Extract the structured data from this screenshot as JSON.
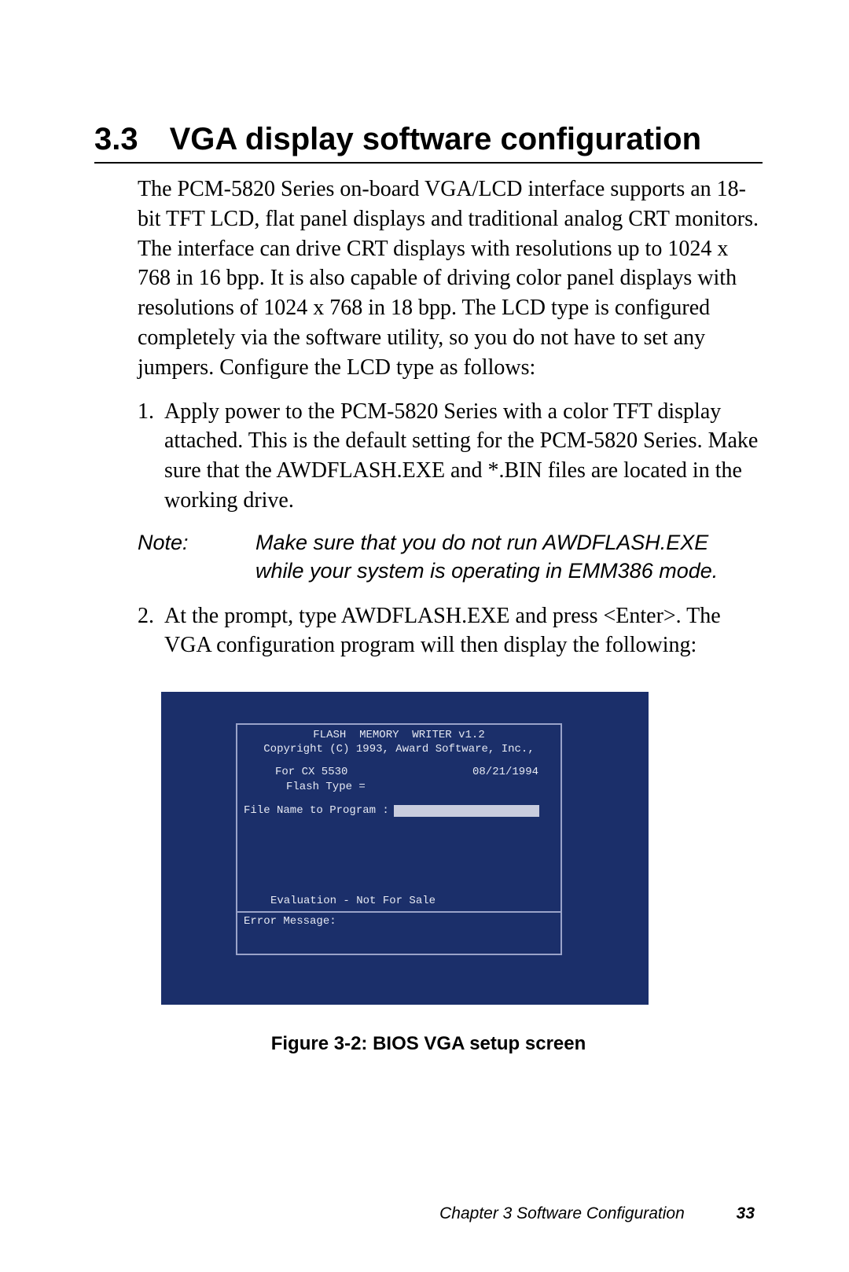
{
  "heading": {
    "number": "3.3",
    "title": "VGA display software configuration"
  },
  "intro_paragraph": "The PCM-5820 Series on-board VGA/LCD interface supports an 18-bit TFT LCD, flat panel displays and traditional analog CRT monitors. The interface can drive CRT displays with resolutions up to 1024 x 768 in 16 bpp. It is also capable of driving color panel displays with resolutions of 1024 x 768 in 18 bpp. The LCD type is configured completely via the software utility, so you do not have to set any jumpers. Configure the LCD type as follows:",
  "list": [
    {
      "num": "1.",
      "text": "Apply power to the PCM-5820 Series with a color TFT display attached. This is the default setting for the PCM-5820 Series. Make sure that the AWDFLASH.EXE and *.BIN files are located in the working drive."
    },
    {
      "num": "2.",
      "text": "At the prompt, type AWDFLASH.EXE and press <Enter>. The VGA configuration program will then display the following:"
    }
  ],
  "note": {
    "label": "Note:",
    "body": "Make sure that you do not run AWDFLASH.EXE while your system is operating in EMM386 mode."
  },
  "bios": {
    "bg_color": "#1b2f6a",
    "border_color": "#9aa3c9",
    "text_color": "#e6e9f2",
    "input_bg": "#c9cdde",
    "title": "FLASH  MEMORY  WRITER v1.2",
    "copyright": "Copyright (C) 1993, Award Software, Inc.,",
    "for_line": "For CX 5530",
    "date": "08/21/1994",
    "flash_type": "Flash Type =",
    "file_prompt": "File Name to Program :",
    "evaluation": "Evaluation - Not For Sale",
    "error_label": "Error Message:"
  },
  "figure_caption": "Figure 3-2: BIOS VGA setup screen",
  "footer": {
    "chapter": "Chapter 3  Software Configuration",
    "page": "33"
  }
}
